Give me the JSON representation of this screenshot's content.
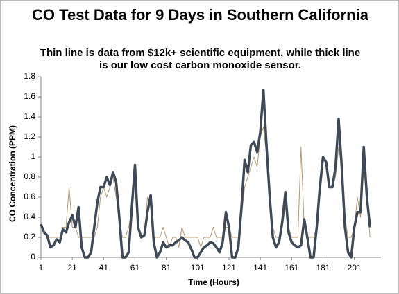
{
  "chart_data": {
    "type": "line",
    "title": "CO Test Data for 9 Days in Southern California",
    "subtitle": "Thin line is data from $12k+ scientific equipment, while thick line is our low cost carbon monoxide sensor.",
    "x_label": "Time (Hours)",
    "y_label": "CO Concentration (PPM)",
    "x": [
      1,
      3,
      5,
      7,
      9,
      11,
      13,
      15,
      17,
      19,
      21,
      23,
      25,
      27,
      29,
      31,
      33,
      35,
      37,
      39,
      41,
      43,
      45,
      47,
      49,
      51,
      53,
      55,
      57,
      59,
      61,
      63,
      65,
      67,
      69,
      71,
      73,
      75,
      77,
      79,
      81,
      83,
      85,
      87,
      89,
      91,
      93,
      95,
      97,
      99,
      101,
      103,
      105,
      107,
      109,
      111,
      113,
      115,
      117,
      119,
      121,
      123,
      125,
      127,
      129,
      131,
      133,
      135,
      137,
      139,
      141,
      143,
      145,
      147,
      149,
      151,
      153,
      155,
      157,
      159,
      161,
      163,
      165,
      167,
      169,
      171,
      173,
      175,
      177,
      179,
      181,
      183,
      185,
      187,
      189,
      191,
      193,
      195,
      197,
      199,
      201,
      203,
      205,
      207,
      209,
      211
    ],
    "series": [
      {
        "color": "#b39a76",
        "width": 1,
        "values": [
          0.3,
          0.25,
          0.2,
          0.2,
          0.2,
          0.2,
          0.2,
          0.3,
          0.3,
          0.7,
          0.3,
          0.3,
          0.2,
          0.2,
          0.2,
          0.2,
          0.2,
          0.2,
          0.3,
          0.6,
          0.7,
          0.6,
          0.7,
          0.8,
          0.6,
          0.4,
          0.2,
          0.2,
          0.3,
          0.5,
          0.8,
          0.3,
          0.2,
          0.2,
          0.6,
          0.5,
          0.2,
          0.2,
          0.2,
          0.3,
          0.2,
          0.1,
          0.2,
          0.2,
          0.1,
          0.3,
          0.2,
          0.2,
          0.2,
          0.2,
          0.2,
          0.1,
          0.2,
          0.2,
          0.2,
          0.3,
          0.2,
          0.2,
          0.2,
          0.3,
          0.3,
          0.2,
          0.2,
          0.2,
          0.4,
          0.7,
          0.8,
          0.9,
          1.0,
          0.9,
          1.2,
          1.3,
          1.0,
          0.6,
          0.3,
          0.2,
          0.2,
          0.3,
          0.5,
          0.3,
          0.2,
          0.2,
          0.2,
          1.1,
          0.3,
          0.2,
          0.2,
          0.2,
          0.3,
          0.6,
          0.9,
          0.9,
          0.7,
          0.7,
          0.8,
          1.1,
          0.9,
          0.4,
          0.2,
          0.2,
          0.3,
          0.6,
          0.4,
          0.9,
          0.6,
          0.2
        ]
      },
      {
        "color": "#3f4a56",
        "width": 3.5,
        "values": [
          0.33,
          0.25,
          0.22,
          0.1,
          0.12,
          0.18,
          0.15,
          0.28,
          0.25,
          0.35,
          0.42,
          0.3,
          0.5,
          0.1,
          0,
          0,
          0.05,
          0.3,
          0.55,
          0.7,
          0.7,
          0.8,
          0.72,
          0.85,
          0.75,
          0.4,
          0,
          0,
          0.05,
          0.5,
          0.92,
          0.3,
          0.2,
          0.22,
          0.45,
          0.62,
          0.15,
          0,
          0.05,
          0.15,
          0.1,
          0.12,
          0.12,
          0.15,
          0.17,
          0.2,
          0.17,
          0.15,
          0.08,
          0,
          0,
          0.05,
          0.1,
          0.12,
          0.15,
          0.14,
          0.1,
          0.05,
          0.15,
          0.45,
          0.3,
          0,
          0,
          0.1,
          0.5,
          0.97,
          0.85,
          1.12,
          1.15,
          1.05,
          1.25,
          1.67,
          1.1,
          0.6,
          0.2,
          0.1,
          0.15,
          0.35,
          0.65,
          0.25,
          0.15,
          0.12,
          0.1,
          0.12,
          0.38,
          0.2,
          0,
          0,
          0.3,
          0.7,
          1.0,
          0.95,
          0.7,
          0.7,
          0.9,
          1.38,
          0.9,
          0.3,
          0.05,
          0,
          0.3,
          0.45,
          0.45,
          1.1,
          0.6,
          0.3
        ]
      }
    ],
    "xlim": [
      1,
      218
    ],
    "xticks": [
      1,
      21,
      41,
      61,
      81,
      101,
      121,
      141,
      161,
      181,
      201
    ],
    "ylim": [
      0,
      1.8
    ],
    "yticks": [
      0,
      0.2,
      0.4,
      0.6,
      0.8,
      1,
      1.2,
      1.4,
      1.6,
      1.8
    ]
  }
}
